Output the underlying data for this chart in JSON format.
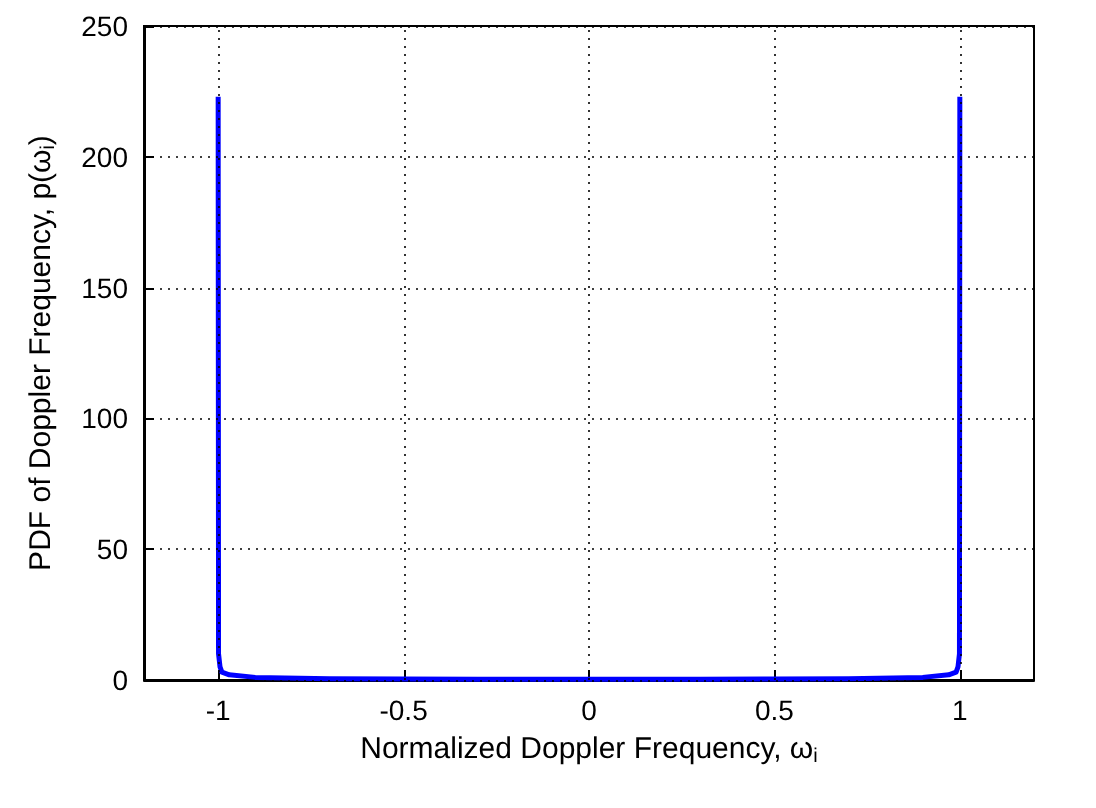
{
  "chart_data": {
    "type": "line",
    "xlabel": "Normalized Doppler Frequency, ω$_{i}$",
    "ylabel": "PDF of Doppler Frequency, p(ω$_{i}$)",
    "x": [
      -1,
      -0.999,
      -0.995,
      -0.99,
      -0.97,
      -0.9,
      -0.7,
      -0.5,
      -0.3,
      0,
      0.3,
      0.5,
      0.7,
      0.9,
      0.97,
      0.99,
      0.995,
      0.999,
      1
    ],
    "series": [
      {
        "color": "#0000ff",
        "values": [
          223,
          10,
          5,
          3,
          2,
          1,
          0.5,
          0.4,
          0.3,
          0.3,
          0.3,
          0.4,
          0.5,
          1,
          2,
          3,
          5,
          10,
          223
        ]
      }
    ],
    "xlim": [
      -1.2,
      1.2
    ],
    "xticks": [
      -1,
      -0.5,
      0,
      0.5,
      1
    ],
    "ylim": [
      0,
      250
    ],
    "yticks": [
      0,
      50,
      100,
      150,
      200,
      250
    ],
    "grid": true,
    "marker": "none",
    "line_style": "solid"
  }
}
